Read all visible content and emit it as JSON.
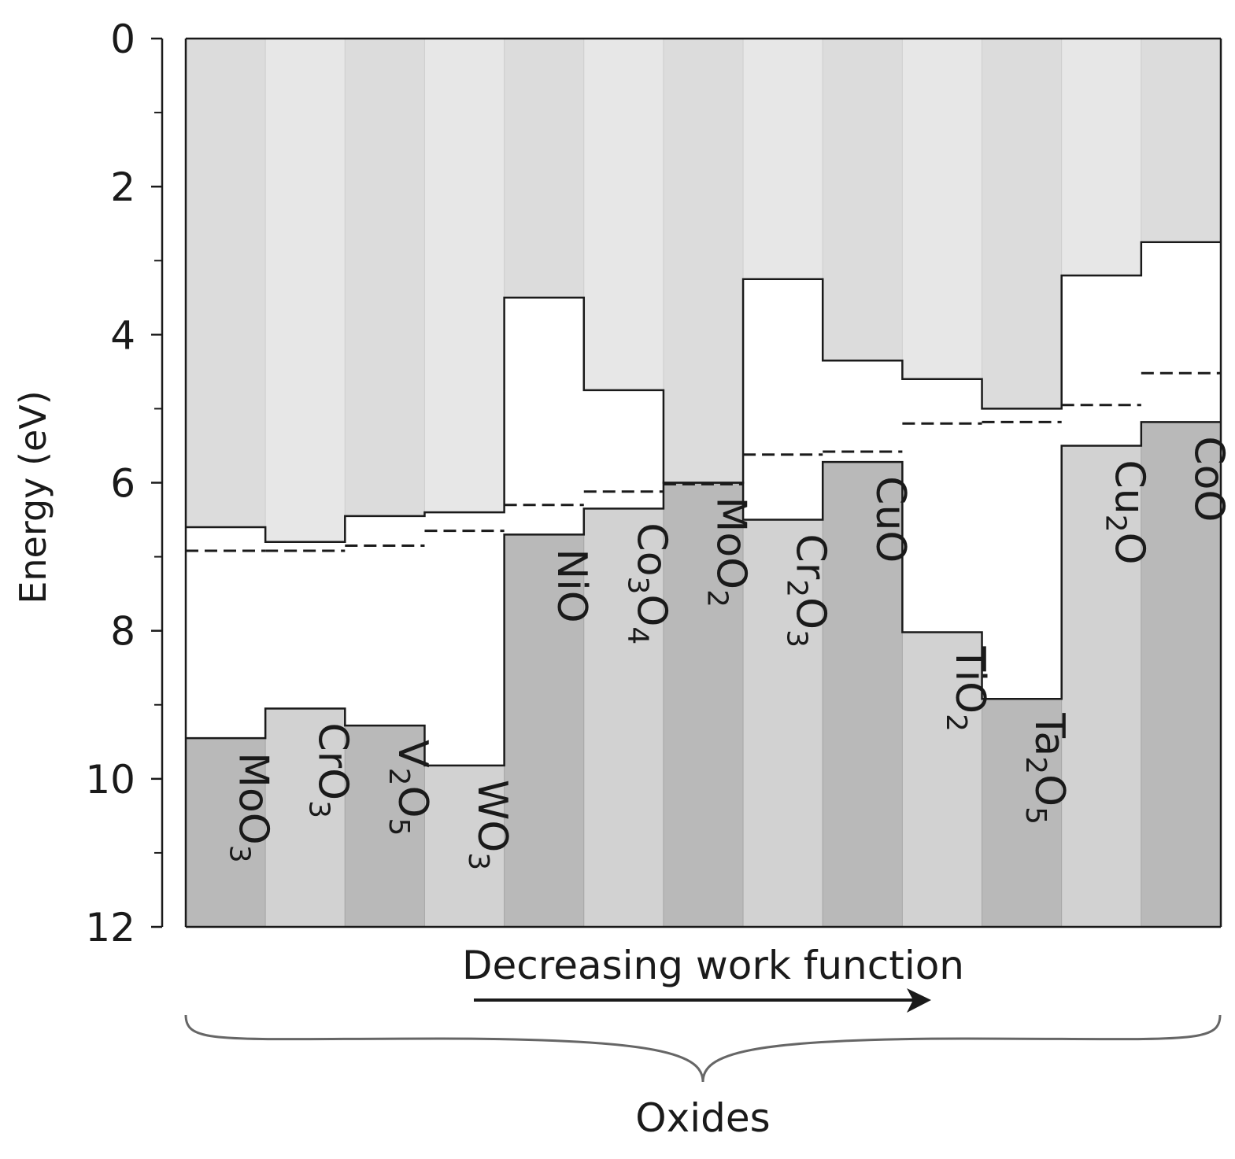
{
  "chart_data": {
    "type": "bar",
    "ylabel": "Energy (eV)",
    "ylim": [
      0,
      12
    ],
    "y_inverted": true,
    "yticks": [
      0,
      2,
      4,
      6,
      8,
      10,
      12
    ],
    "y_minor_ticks": [
      1,
      3,
      5,
      7,
      9,
      11
    ],
    "arrow_label": "Decreasing work function",
    "group_label": "Oxides",
    "colors": {
      "cb_dark": "#dcdcdc",
      "cb_light": "#e7e7e7",
      "vb_dark": "#b9b9b9",
      "vb_light": "#d2d2d2",
      "line": "#1a1a1a"
    },
    "categories": [
      "MoO3",
      "CrO3",
      "V2O5",
      "WO3",
      "NiO",
      "Co3O4",
      "MoO2",
      "Cr2O3",
      "CuO",
      "TiO2",
      "Ta2O5",
      "Cu2O",
      "CoO"
    ],
    "labels": [
      [
        {
          "t": "MoO"
        },
        {
          "t": "3",
          "sub": true
        }
      ],
      [
        {
          "t": "CrO"
        },
        {
          "t": "3",
          "sub": true
        }
      ],
      [
        {
          "t": "V"
        },
        {
          "t": "2",
          "sub": true
        },
        {
          "t": "O"
        },
        {
          "t": "5",
          "sub": true
        }
      ],
      [
        {
          "t": "WO"
        },
        {
          "t": "3",
          "sub": true
        }
      ],
      [
        {
          "t": "NiO"
        }
      ],
      [
        {
          "t": "Co"
        },
        {
          "t": "3",
          "sub": true
        },
        {
          "t": "O"
        },
        {
          "t": "4",
          "sub": true
        }
      ],
      [
        {
          "t": "MoO"
        },
        {
          "t": "2",
          "sub": true
        }
      ],
      [
        {
          "t": "Cr"
        },
        {
          "t": "2",
          "sub": true
        },
        {
          "t": "O"
        },
        {
          "t": "3",
          "sub": true
        }
      ],
      [
        {
          "t": "CuO"
        }
      ],
      [
        {
          "t": "TiO"
        },
        {
          "t": "2",
          "sub": true
        }
      ],
      [
        {
          "t": "Ta"
        },
        {
          "t": "2",
          "sub": true
        },
        {
          "t": "O"
        },
        {
          "t": "5",
          "sub": true
        }
      ],
      [
        {
          "t": "Cu"
        },
        {
          "t": "2",
          "sub": true
        },
        {
          "t": "O"
        }
      ],
      [
        {
          "t": "CoO"
        }
      ]
    ],
    "series": [
      {
        "values": [
          6.6,
          6.8,
          6.45,
          6.4,
          3.5,
          4.75,
          6.0,
          3.25,
          4.35,
          4.6,
          5.0,
          3.2,
          2.75
        ]
      },
      {
        "values": [
          9.45,
          9.05,
          9.28,
          9.82,
          6.7,
          6.35,
          6.0,
          6.5,
          5.72,
          8.02,
          8.92,
          5.5,
          5.18
        ]
      },
      {
        "values": [
          6.92,
          6.92,
          6.85,
          6.65,
          6.3,
          6.12,
          6.02,
          5.62,
          5.58,
          5.2,
          5.18,
          4.95,
          4.52
        ]
      }
    ]
  }
}
